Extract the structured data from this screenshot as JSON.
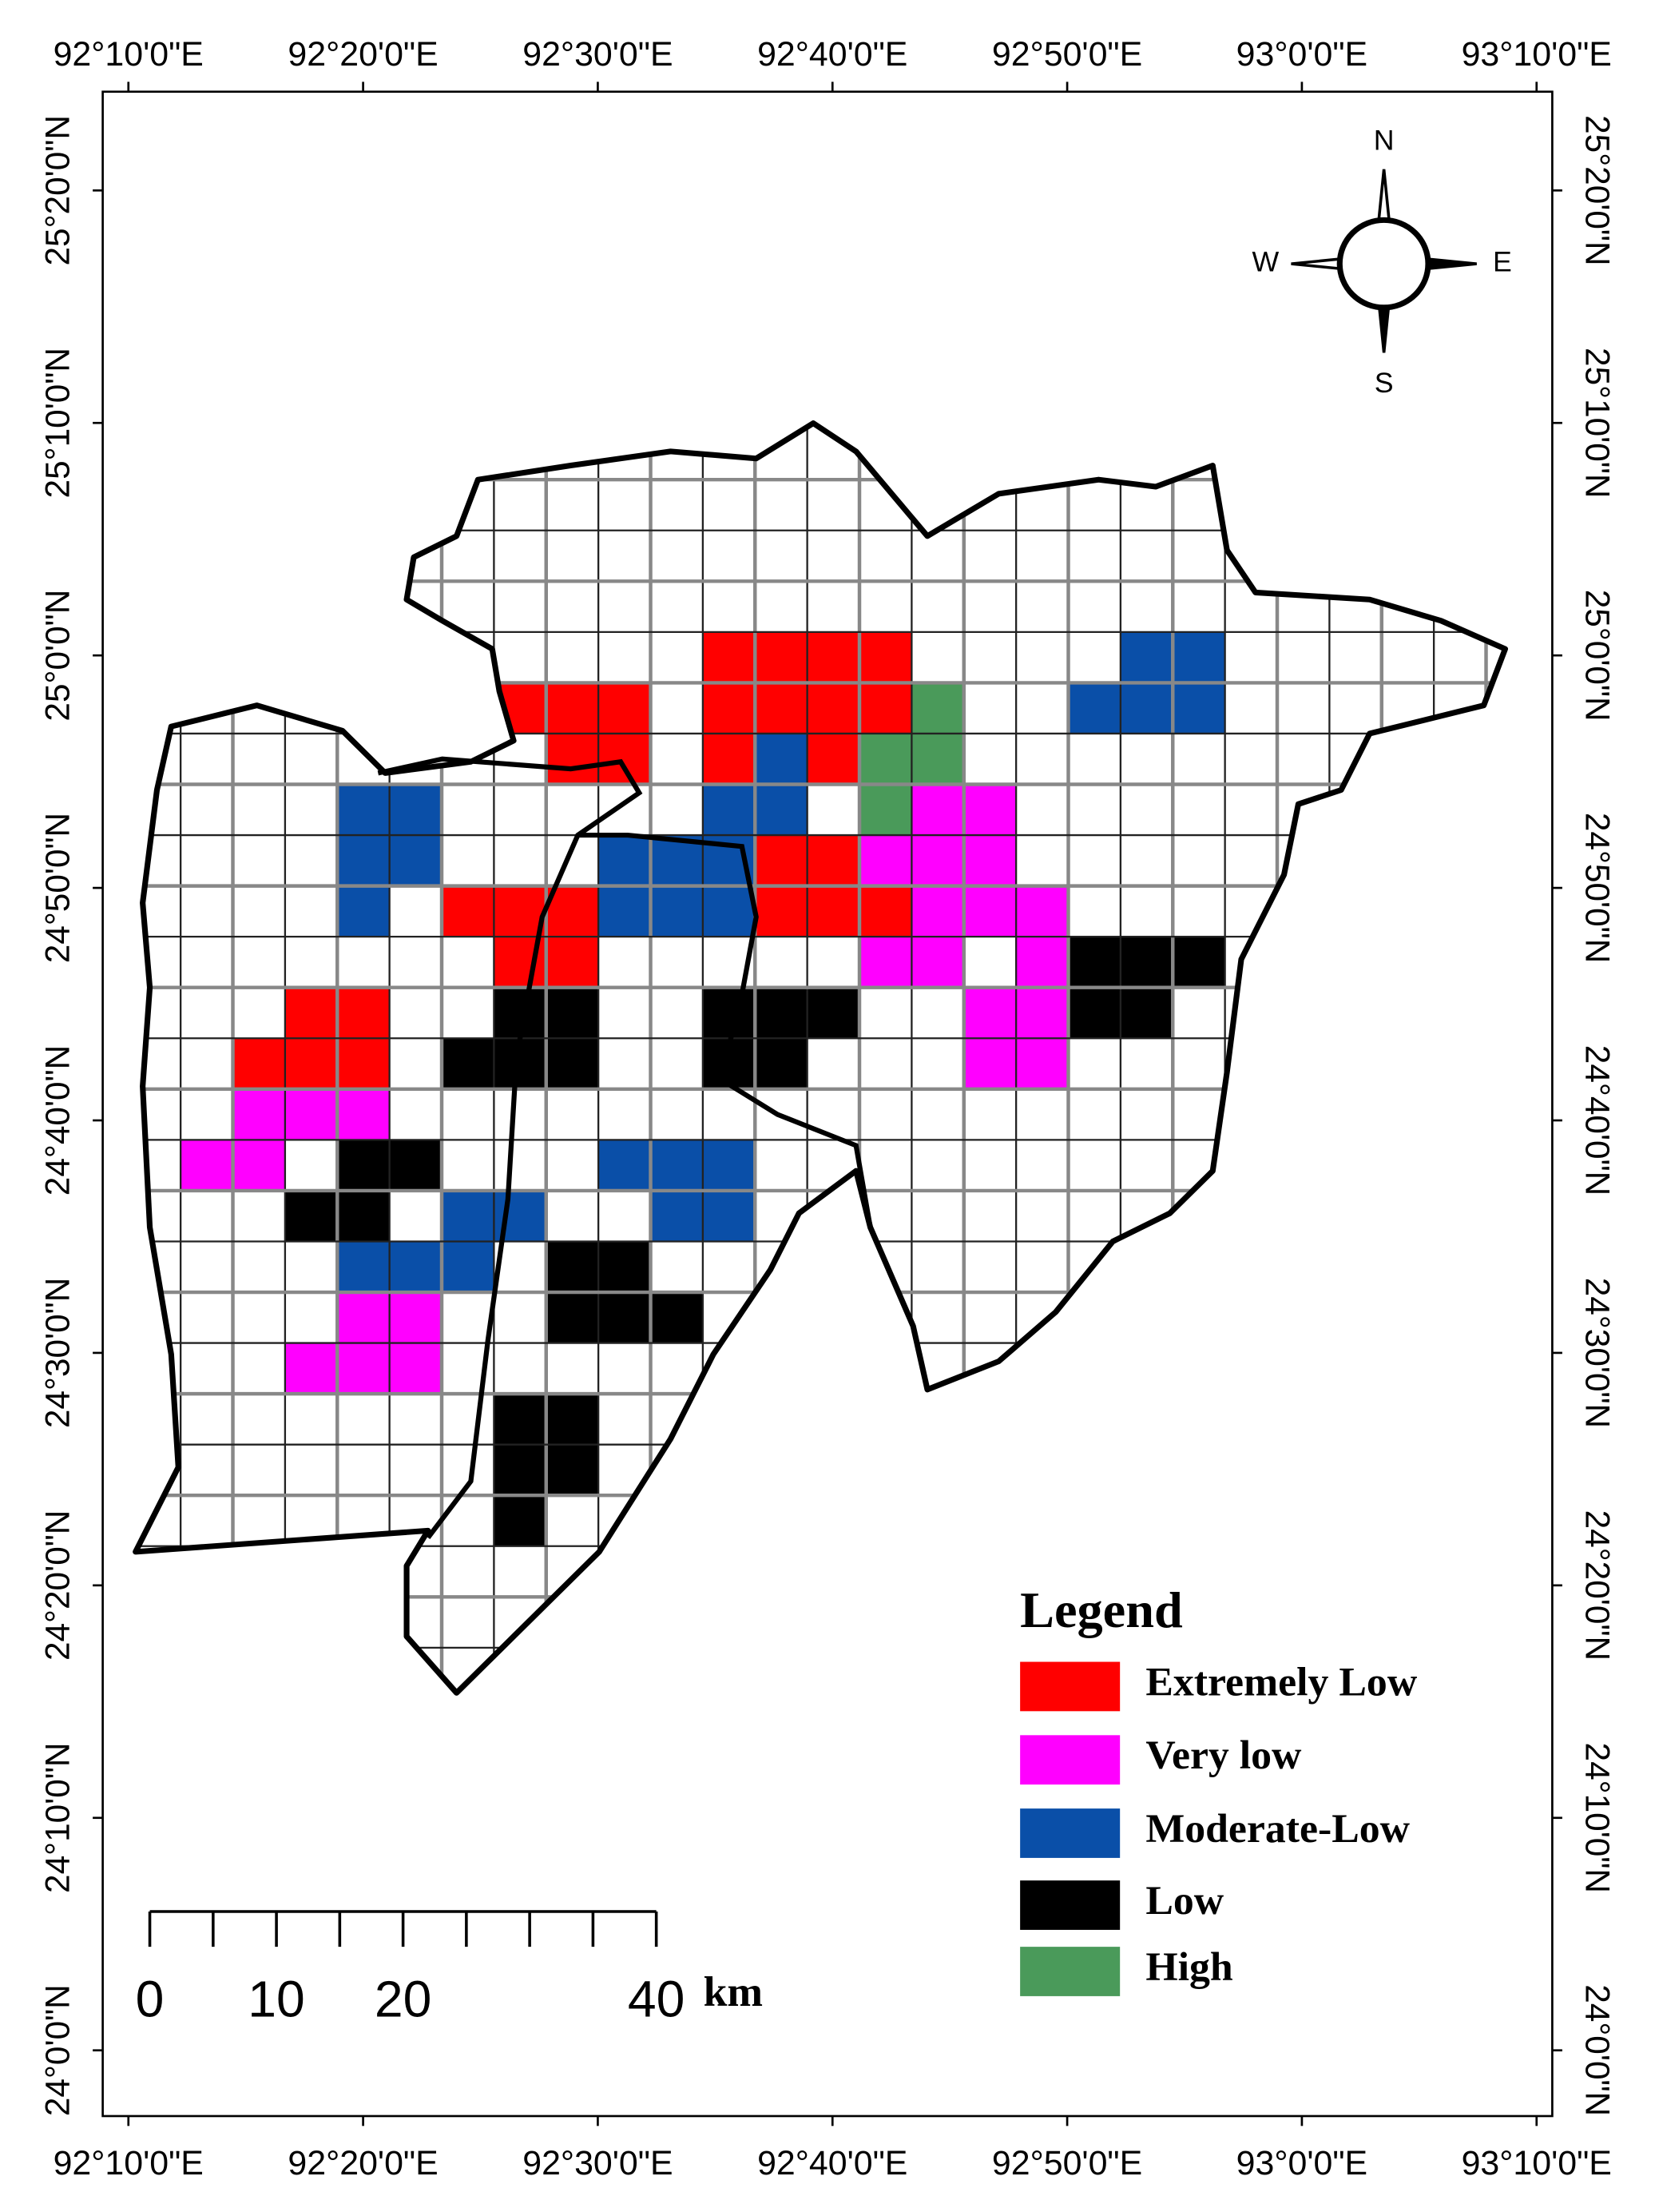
{
  "map": {
    "graticule": {
      "longitudes": [
        "92°10'0\"E",
        "92°20'0\"E",
        "92°30'0\"E",
        "92°40'0\"E",
        "92°50'0\"E",
        "93°0'0\"E",
        "93°10'0\"E"
      ],
      "latitudes": [
        "25°20'0\"N",
        "25°10'0\"N",
        "25°0'0\"N",
        "24°50'0\"N",
        "24°40'0\"N",
        "24°30'0\"N",
        "24°20'0\"N",
        "24°10'0\"N",
        "24°0'0\"N"
      ]
    },
    "compass": {
      "north": "N",
      "south": "S",
      "east": "E",
      "west": "W"
    },
    "legend": {
      "title": "Legend",
      "items": [
        {
          "label": "Extremely Low",
          "color": "#ff0000"
        },
        {
          "label": "Very low",
          "color": "#ff00ff"
        },
        {
          "label": "Moderate-Low",
          "color": "#0a4fa8"
        },
        {
          "label": "Low",
          "color": "#000000"
        },
        {
          "label": "High",
          "color": "#4a9a5a"
        }
      ]
    },
    "scale_bar": {
      "labels": [
        0,
        10,
        20,
        40
      ],
      "unit": "km"
    }
  }
}
